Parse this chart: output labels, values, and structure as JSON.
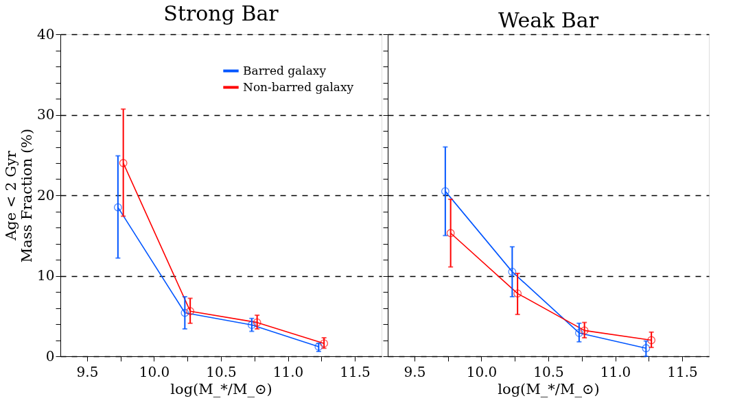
{
  "chart_data": [
    {
      "type": "line",
      "title": "Strong Bar",
      "xlabel": "log(M_*/M_⊙)",
      "ylabel": "Age < 2 Gyr\nMass Fraction (%)",
      "xlim": [
        9.3,
        11.7
      ],
      "xticks": [
        9.5,
        {
          "value": 9.75,
          "label": null
        },
        {
          "value": 10,
          "label": "10.0"
        },
        {
          "value": 10.25,
          "label": null
        },
        10.5,
        {
          "value": 10.75,
          "label": null
        },
        {
          "value": 11,
          "label": "11.0"
        },
        {
          "value": 11.25,
          "label": null
        },
        11.5
      ],
      "ylim": [
        0,
        40
      ],
      "yticks": [
        0,
        {
          "value": 2,
          "label": null
        },
        {
          "value": 4,
          "label": null
        },
        {
          "value": 6,
          "label": null
        },
        {
          "value": 8,
          "label": null
        },
        10,
        {
          "value": 12,
          "label": null
        },
        {
          "value": 14,
          "label": null
        },
        {
          "value": 16,
          "label": null
        },
        {
          "value": 18,
          "label": null
        },
        20,
        {
          "value": 22,
          "label": null
        },
        {
          "value": 24,
          "label": null
        },
        {
          "value": 26,
          "label": null
        },
        {
          "value": 28,
          "label": null
        },
        30,
        {
          "value": 32,
          "label": null
        },
        {
          "value": 34,
          "label": null
        },
        {
          "value": 36,
          "label": null
        },
        {
          "value": 38,
          "label": null
        },
        40
      ],
      "grid": "y",
      "legend": "top right",
      "marker": "circle",
      "line_style": "solid",
      "series": [
        {
          "name": "Barred galaxy",
          "color": "#0055ff",
          "x": [
            9.73,
            10.23,
            10.73,
            11.23
          ],
          "values": [
            18.5,
            5.4,
            3.9,
            1.2
          ],
          "errors": [
            [
              12.2,
              24.9
            ],
            [
              3.4,
              7.4
            ],
            [
              3.1,
              4.7
            ],
            [
              0.6,
              1.6
            ]
          ]
        },
        {
          "name": "Non-barred galaxy",
          "color": "#ff0000",
          "x": [
            9.77,
            10.27,
            10.77,
            11.27
          ],
          "values": [
            24.0,
            5.6,
            4.2,
            1.6
          ],
          "errors": [
            [
              17.4,
              30.7
            ],
            [
              4.1,
              7.2
            ],
            [
              3.4,
              5.1
            ],
            [
              1.0,
              2.3
            ]
          ]
        }
      ]
    },
    {
      "type": "line",
      "title": "Weak Bar",
      "xlabel": "log(M_*/M_⊙)",
      "xlim": [
        9.3,
        11.7
      ],
      "xticks": [
        9.5,
        {
          "value": 9.75,
          "label": null
        },
        {
          "value": 10,
          "label": "10.0"
        },
        {
          "value": 10.25,
          "label": null
        },
        10.5,
        {
          "value": 10.75,
          "label": null
        },
        {
          "value": 11,
          "label": "11.0"
        },
        {
          "value": 11.25,
          "label": null
        },
        11.5
      ],
      "ylim": [
        0,
        40
      ],
      "yticks": [
        0,
        {
          "value": 2,
          "label": null
        },
        {
          "value": 4,
          "label": null
        },
        {
          "value": 6,
          "label": null
        },
        {
          "value": 8,
          "label": null
        },
        10,
        {
          "value": 12,
          "label": null
        },
        {
          "value": 14,
          "label": null
        },
        {
          "value": 16,
          "label": null
        },
        {
          "value": 18,
          "label": null
        },
        20,
        {
          "value": 22,
          "label": null
        },
        {
          "value": 24,
          "label": null
        },
        {
          "value": 26,
          "label": null
        },
        {
          "value": 28,
          "label": null
        },
        30,
        {
          "value": 32,
          "label": null
        },
        {
          "value": 34,
          "label": null
        },
        {
          "value": 36,
          "label": null
        },
        {
          "value": 38,
          "label": null
        },
        40
      ],
      "grid": "y",
      "tick_labels": "x",
      "marker": "circle",
      "line_style": "solid",
      "series": [
        {
          "color": "#0055ff",
          "x": [
            9.73,
            10.23,
            10.73,
            11.23
          ],
          "values": [
            20.5,
            10.5,
            2.9,
            1.0
          ],
          "errors": [
            [
              15.0,
              26.0
            ],
            [
              7.4,
              13.6
            ],
            [
              1.8,
              4.1
            ],
            [
              0.0,
              1.9
            ]
          ]
        },
        {
          "color": "#ff0000",
          "x": [
            9.77,
            10.27,
            10.77,
            11.27
          ],
          "values": [
            15.3,
            7.8,
            3.2,
            2.0
          ],
          "errors": [
            [
              11.1,
              19.5
            ],
            [
              5.2,
              10.3
            ],
            [
              2.3,
              4.2
            ],
            [
              1.1,
              3.0
            ]
          ]
        }
      ]
    }
  ]
}
